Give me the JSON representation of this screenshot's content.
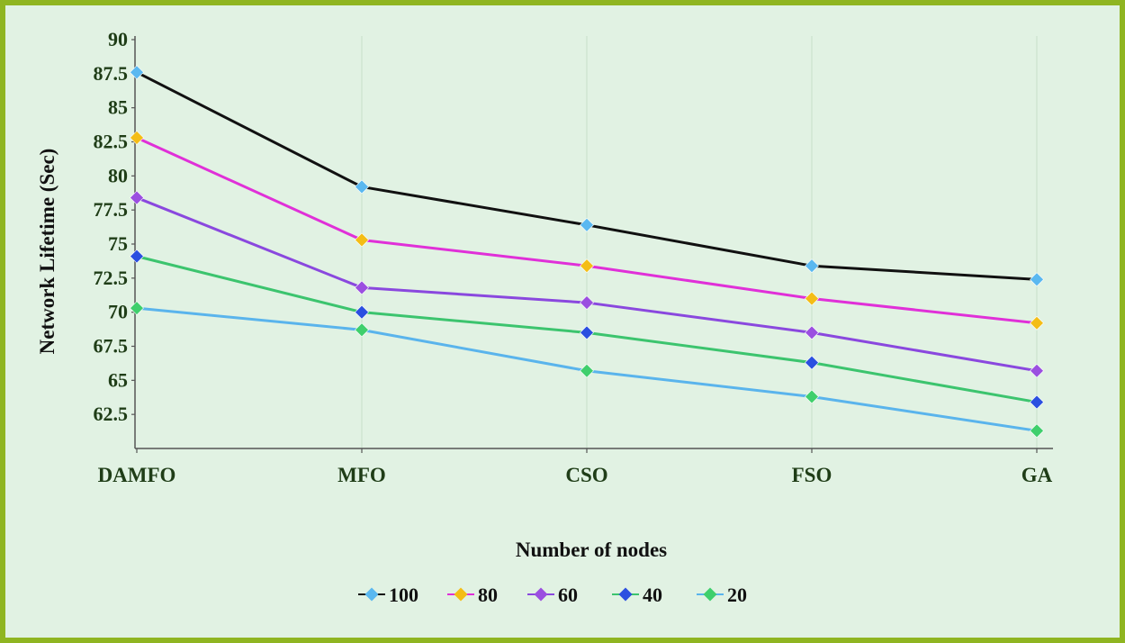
{
  "chart_data": {
    "type": "line",
    "title": "",
    "xlabel": "Number of nodes",
    "ylabel": "Network Lifetime (Sec)",
    "categories": [
      "DAMFO",
      "MFO",
      "CSO",
      "FSO",
      "GA"
    ],
    "yticks": [
      "62.5",
      "65",
      "67.5",
      "70",
      "72.5",
      "75",
      "77.5",
      "80",
      "82.5",
      "85",
      "87.5",
      "90"
    ],
    "ylim": [
      60,
      90
    ],
    "grid": "vertical",
    "legend_position": "bottom",
    "series": [
      {
        "name": "100",
        "values": [
          87.6,
          79.2,
          76.4,
          73.4,
          72.4
        ],
        "line_color": "#111111",
        "marker_color": "#5ab8f0"
      },
      {
        "name": "80",
        "values": [
          82.8,
          75.3,
          73.4,
          71.0,
          69.2
        ],
        "line_color": "#e030d8",
        "marker_color": "#f4bd16"
      },
      {
        "name": "60",
        "values": [
          78.4,
          71.8,
          70.7,
          68.5,
          65.7
        ],
        "line_color": "#8a48de",
        "marker_color": "#9b4fe0"
      },
      {
        "name": "40",
        "values": [
          74.1,
          70.0,
          68.5,
          66.3,
          63.4
        ],
        "line_color": "#3cc46e",
        "marker_color": "#2b4fe0"
      },
      {
        "name": "20",
        "values": [
          70.3,
          68.7,
          65.7,
          63.8,
          61.3
        ],
        "line_color": "#5ab4ec",
        "marker_color": "#3fcf6c"
      }
    ]
  }
}
